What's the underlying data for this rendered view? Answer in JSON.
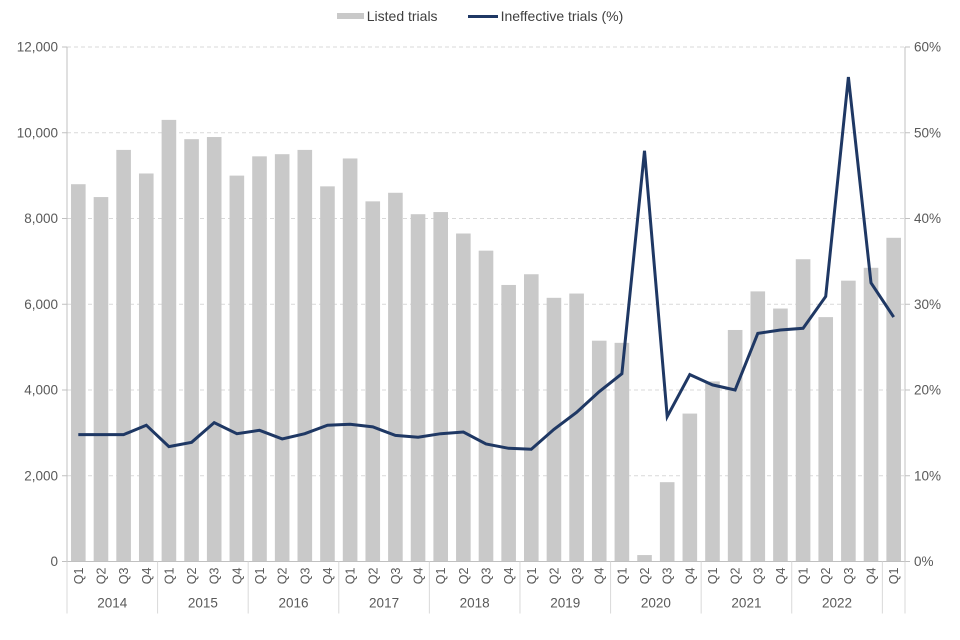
{
  "legend": {
    "items": [
      {
        "label": "Listed trials",
        "swatch": "bar"
      },
      {
        "label": "Ineffective trials (%)",
        "swatch": "line"
      }
    ]
  },
  "colors": {
    "bar": "#c9c9c9",
    "line": "#1f3864",
    "axis_text": "#595959",
    "legend_text": "#3f3f3f",
    "grid": "#d9d9d9",
    "axis_line": "#c0c0c0",
    "background": "#ffffff"
  },
  "chart_data": {
    "type": "combo-bar-line",
    "title": "",
    "grid": "horizontal-dashed",
    "legend_position": "top-center",
    "categories": [
      "Q1",
      "Q2",
      "Q3",
      "Q4",
      "Q1",
      "Q2",
      "Q3",
      "Q4",
      "Q1",
      "Q2",
      "Q3",
      "Q4",
      "Q1",
      "Q2",
      "Q3",
      "Q4",
      "Q1",
      "Q2",
      "Q3",
      "Q4",
      "Q1",
      "Q2",
      "Q3",
      "Q4",
      "Q1",
      "Q2",
      "Q3",
      "Q4",
      "Q1",
      "Q2",
      "Q3",
      "Q4",
      "Q1",
      "Q2",
      "Q3",
      "Q4",
      "Q1"
    ],
    "year_groups": [
      {
        "label": "2014",
        "quarters": 4
      },
      {
        "label": "2015",
        "quarters": 4
      },
      {
        "label": "2016",
        "quarters": 4
      },
      {
        "label": "2017",
        "quarters": 4
      },
      {
        "label": "2018",
        "quarters": 4
      },
      {
        "label": "2019",
        "quarters": 4
      },
      {
        "label": "2020",
        "quarters": 4
      },
      {
        "label": "2021",
        "quarters": 4
      },
      {
        "label": "2022",
        "quarters": 4
      },
      {
        "label": "",
        "quarters": 1
      }
    ],
    "series": [
      {
        "name": "Listed trials",
        "type": "bar",
        "axis": "left",
        "color": "#c9c9c9",
        "values": [
          8800,
          8500,
          9600,
          9050,
          10300,
          9850,
          9900,
          9000,
          9450,
          9500,
          9600,
          8750,
          9400,
          8400,
          8600,
          8100,
          8150,
          7650,
          7250,
          6450,
          6700,
          6150,
          6250,
          5150,
          5100,
          150,
          1850,
          3450,
          4200,
          5400,
          6300,
          5900,
          7050,
          5700,
          6550,
          6850,
          7550
        ]
      },
      {
        "name": "Ineffective trials (%)",
        "type": "line",
        "axis": "right",
        "color": "#1f3864",
        "values": [
          14.8,
          14.8,
          14.8,
          15.9,
          13.4,
          13.9,
          16.2,
          14.9,
          15.3,
          14.3,
          14.9,
          15.9,
          16.0,
          15.7,
          14.7,
          14.5,
          14.9,
          15.1,
          13.7,
          13.2,
          13.1,
          15.4,
          17.4,
          19.8,
          21.9,
          47.9,
          16.9,
          21.8,
          20.6,
          20.0,
          26.6,
          27.0,
          27.2,
          30.9,
          56.5,
          32.5,
          28.5
        ]
      }
    ],
    "left_axis": {
      "min": 0,
      "max": 12000,
      "step": 2000,
      "labels": [
        "0",
        "2,000",
        "4,000",
        "6,000",
        "8,000",
        "10,000",
        "12,000"
      ]
    },
    "right_axis": {
      "min": 0,
      "max": 60,
      "step": 10,
      "labels": [
        "0%",
        "10%",
        "20%",
        "30%",
        "40%",
        "50%",
        "60%"
      ]
    }
  }
}
